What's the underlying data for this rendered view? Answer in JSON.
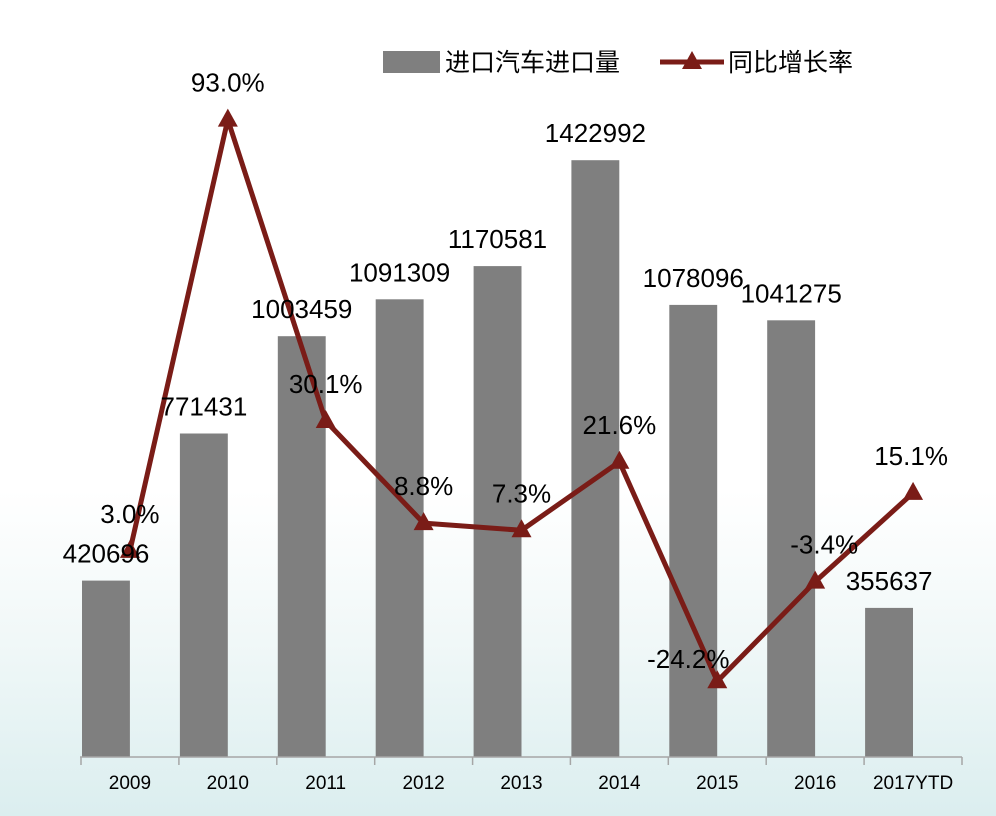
{
  "chart_data": {
    "type": "bar",
    "categories": [
      "2009",
      "2010",
      "2011",
      "2012",
      "2013",
      "2014",
      "2015",
      "2016",
      "2017YTD"
    ],
    "series": [
      {
        "name": "进口汽车进口量",
        "type": "bar",
        "axis": "primary",
        "color": "#7f7f7f",
        "values": [
          420696,
          771431,
          1003459,
          1091309,
          1170581,
          1422992,
          1078096,
          1041275,
          355637
        ]
      },
      {
        "name": "同比增长率",
        "type": "line",
        "axis": "secondary",
        "marker": "triangle",
        "color": "#7a1c17",
        "label_suffix": "%",
        "values": [
          3.0,
          93.0,
          30.1,
          8.8,
          7.3,
          21.6,
          -24.2,
          -3.4,
          15.1
        ]
      }
    ],
    "ylim": [
      0,
      1600000
    ],
    "y2lim": [
      -40,
      100
    ],
    "grid": false,
    "legend": "top",
    "data_labels": true
  }
}
